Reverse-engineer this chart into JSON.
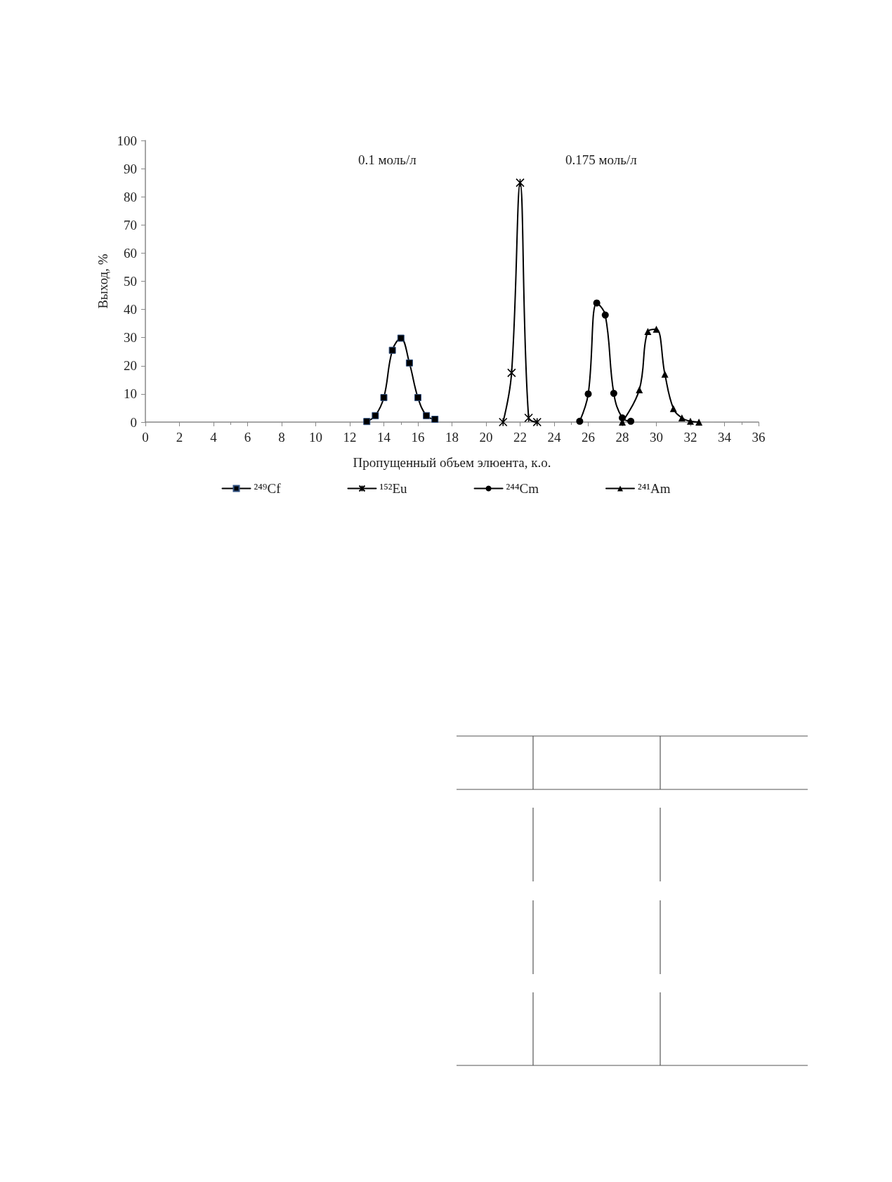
{
  "chart_data": {
    "type": "line",
    "xlabel": "Пропущенный объем элюента, к.о.",
    "ylabel": "Выход, %",
    "annotations": [
      "0.1 моль/л",
      "0.175 моль/л"
    ],
    "xlim": [
      0,
      36
    ],
    "xticks": [
      0,
      2,
      4,
      6,
      8,
      10,
      12,
      14,
      16,
      18,
      20,
      22,
      24,
      26,
      28,
      30,
      32,
      34,
      36
    ],
    "ylim": [
      0,
      100
    ],
    "yticks": [
      0,
      10,
      20,
      30,
      40,
      50,
      60,
      70,
      80,
      90,
      100
    ],
    "grid": false,
    "legend": "bottom",
    "line_style": "solid",
    "series": [
      {
        "name": "²⁴⁹Cf",
        "color": "#000000",
        "marker": "square",
        "x": [
          13,
          13.5,
          14,
          14.5,
          15,
          15.5,
          16,
          16.5,
          17
        ],
        "values": [
          0.2,
          2.3,
          8.7,
          25.5,
          29.8,
          21,
          8.7,
          2.3,
          1.0
        ]
      },
      {
        "name": "¹⁵²Eu",
        "color": "#000000",
        "marker": "cross",
        "x": [
          21,
          21.5,
          22,
          22.5,
          23
        ],
        "values": [
          0,
          17.5,
          85,
          1.5,
          0
        ]
      },
      {
        "name": "²⁴⁴Cm",
        "color": "#000000",
        "marker": "circle",
        "x": [
          25.5,
          26,
          26.5,
          27,
          27.5,
          28,
          28.5
        ],
        "values": [
          0.3,
          10,
          42.3,
          38,
          10.2,
          1.5,
          0.3
        ]
      },
      {
        "name": "²⁴¹Am",
        "color": "#000000",
        "marker": "triangle",
        "x": [
          28,
          29,
          29.5,
          30,
          30.5,
          31,
          31.5,
          32,
          32.5
        ],
        "values": [
          0,
          11.5,
          32.2,
          33,
          17,
          4.8,
          1.5,
          0.3,
          0
        ]
      }
    ]
  }
}
